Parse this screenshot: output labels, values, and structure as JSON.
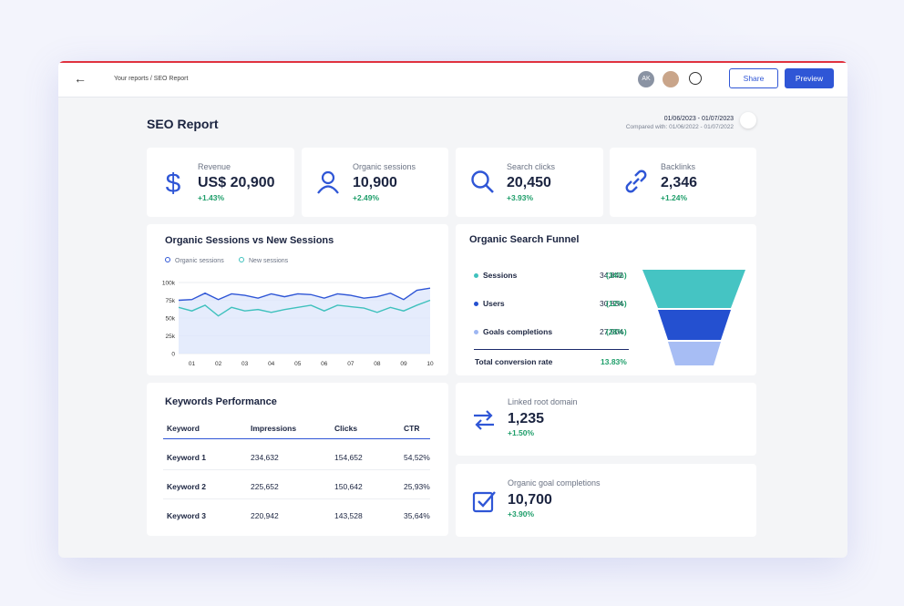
{
  "breadcrumb": "Your reports / SEO Report",
  "avatar": "AK",
  "buttons": {
    "share": "Share",
    "preview": "Preview"
  },
  "report": {
    "title": "SEO Report",
    "date_range": "01/06/2023 - 01/07/2023",
    "compared": "Compared with: 01/06/2022 - 01/07/2022"
  },
  "kpis": [
    {
      "label": "Revenue",
      "value": "US$ 20,900",
      "change": "+1.43%"
    },
    {
      "label": "Organic sessions",
      "value": "10,900",
      "change": "+2.49%"
    },
    {
      "label": "Search clicks",
      "value": "20,450",
      "change": "+3.93%"
    },
    {
      "label": "Backlinks",
      "value": "2,346",
      "change": "+1.24%"
    }
  ],
  "chart_data": {
    "type": "line",
    "title": "Organic Sessions vs New Sessions",
    "categories": [
      null,
      "01",
      null,
      "02",
      null,
      "03",
      null,
      "04",
      null,
      "05",
      null,
      "06",
      null,
      "07",
      null,
      "08",
      null,
      "09",
      null,
      "10"
    ],
    "series": [
      {
        "name": "Organic sessions",
        "color": "#2f56d6",
        "values": [
          75,
          76,
          85,
          76,
          84,
          82,
          78,
          84,
          80,
          84,
          83,
          78,
          84,
          82,
          78,
          80,
          85,
          76,
          89,
          92
        ]
      },
      {
        "name": "New sessions",
        "color": "#3fc1bd",
        "values": [
          65,
          60,
          68,
          53,
          65,
          60,
          62,
          58,
          62,
          65,
          68,
          60,
          68,
          66,
          64,
          58,
          65,
          60,
          68,
          75
        ]
      }
    ],
    "ylim": [
      0,
      100
    ],
    "yticks": [
      {
        "value": 0,
        "label": "0"
      },
      {
        "value": 25,
        "label": "25k"
      },
      {
        "value": 50,
        "label": "50k"
      },
      {
        "value": 75,
        "label": "75k"
      },
      {
        "value": 100,
        "label": "100k"
      }
    ],
    "grid": true
  },
  "funnel": {
    "title": "Organic Search Funnel",
    "rows": [
      {
        "label": "Sessions",
        "value": "34,842",
        "share": "(34%)",
        "color": "#3fc1bd"
      },
      {
        "label": "Users",
        "value": "30,834",
        "share": "(12%)",
        "color": "#2450d0"
      },
      {
        "label": "Goals completions",
        "value": "27,904",
        "share": "(28%)",
        "color": "#9db6f2"
      }
    ],
    "total_label": "Total conversion rate",
    "total_value": "13.83%"
  },
  "keywords": {
    "title": "Keywords Performance",
    "header": [
      "Keyword",
      "Impressions",
      "Clicks",
      "CTR"
    ],
    "rows": [
      [
        "Keyword 1",
        "234,632",
        "154,652",
        "54,52%"
      ],
      [
        "Keyword 2",
        "225,652",
        "150,642",
        "25,93%"
      ],
      [
        "Keyword 3",
        "220,942",
        "143,528",
        "35,64%"
      ]
    ]
  },
  "extra_kpis": [
    {
      "label": "Linked root domain",
      "value": "1,235",
      "change": "+1.50%"
    },
    {
      "label": "Organic goal completions",
      "value": "10,700",
      "change": "+3.90%"
    }
  ]
}
